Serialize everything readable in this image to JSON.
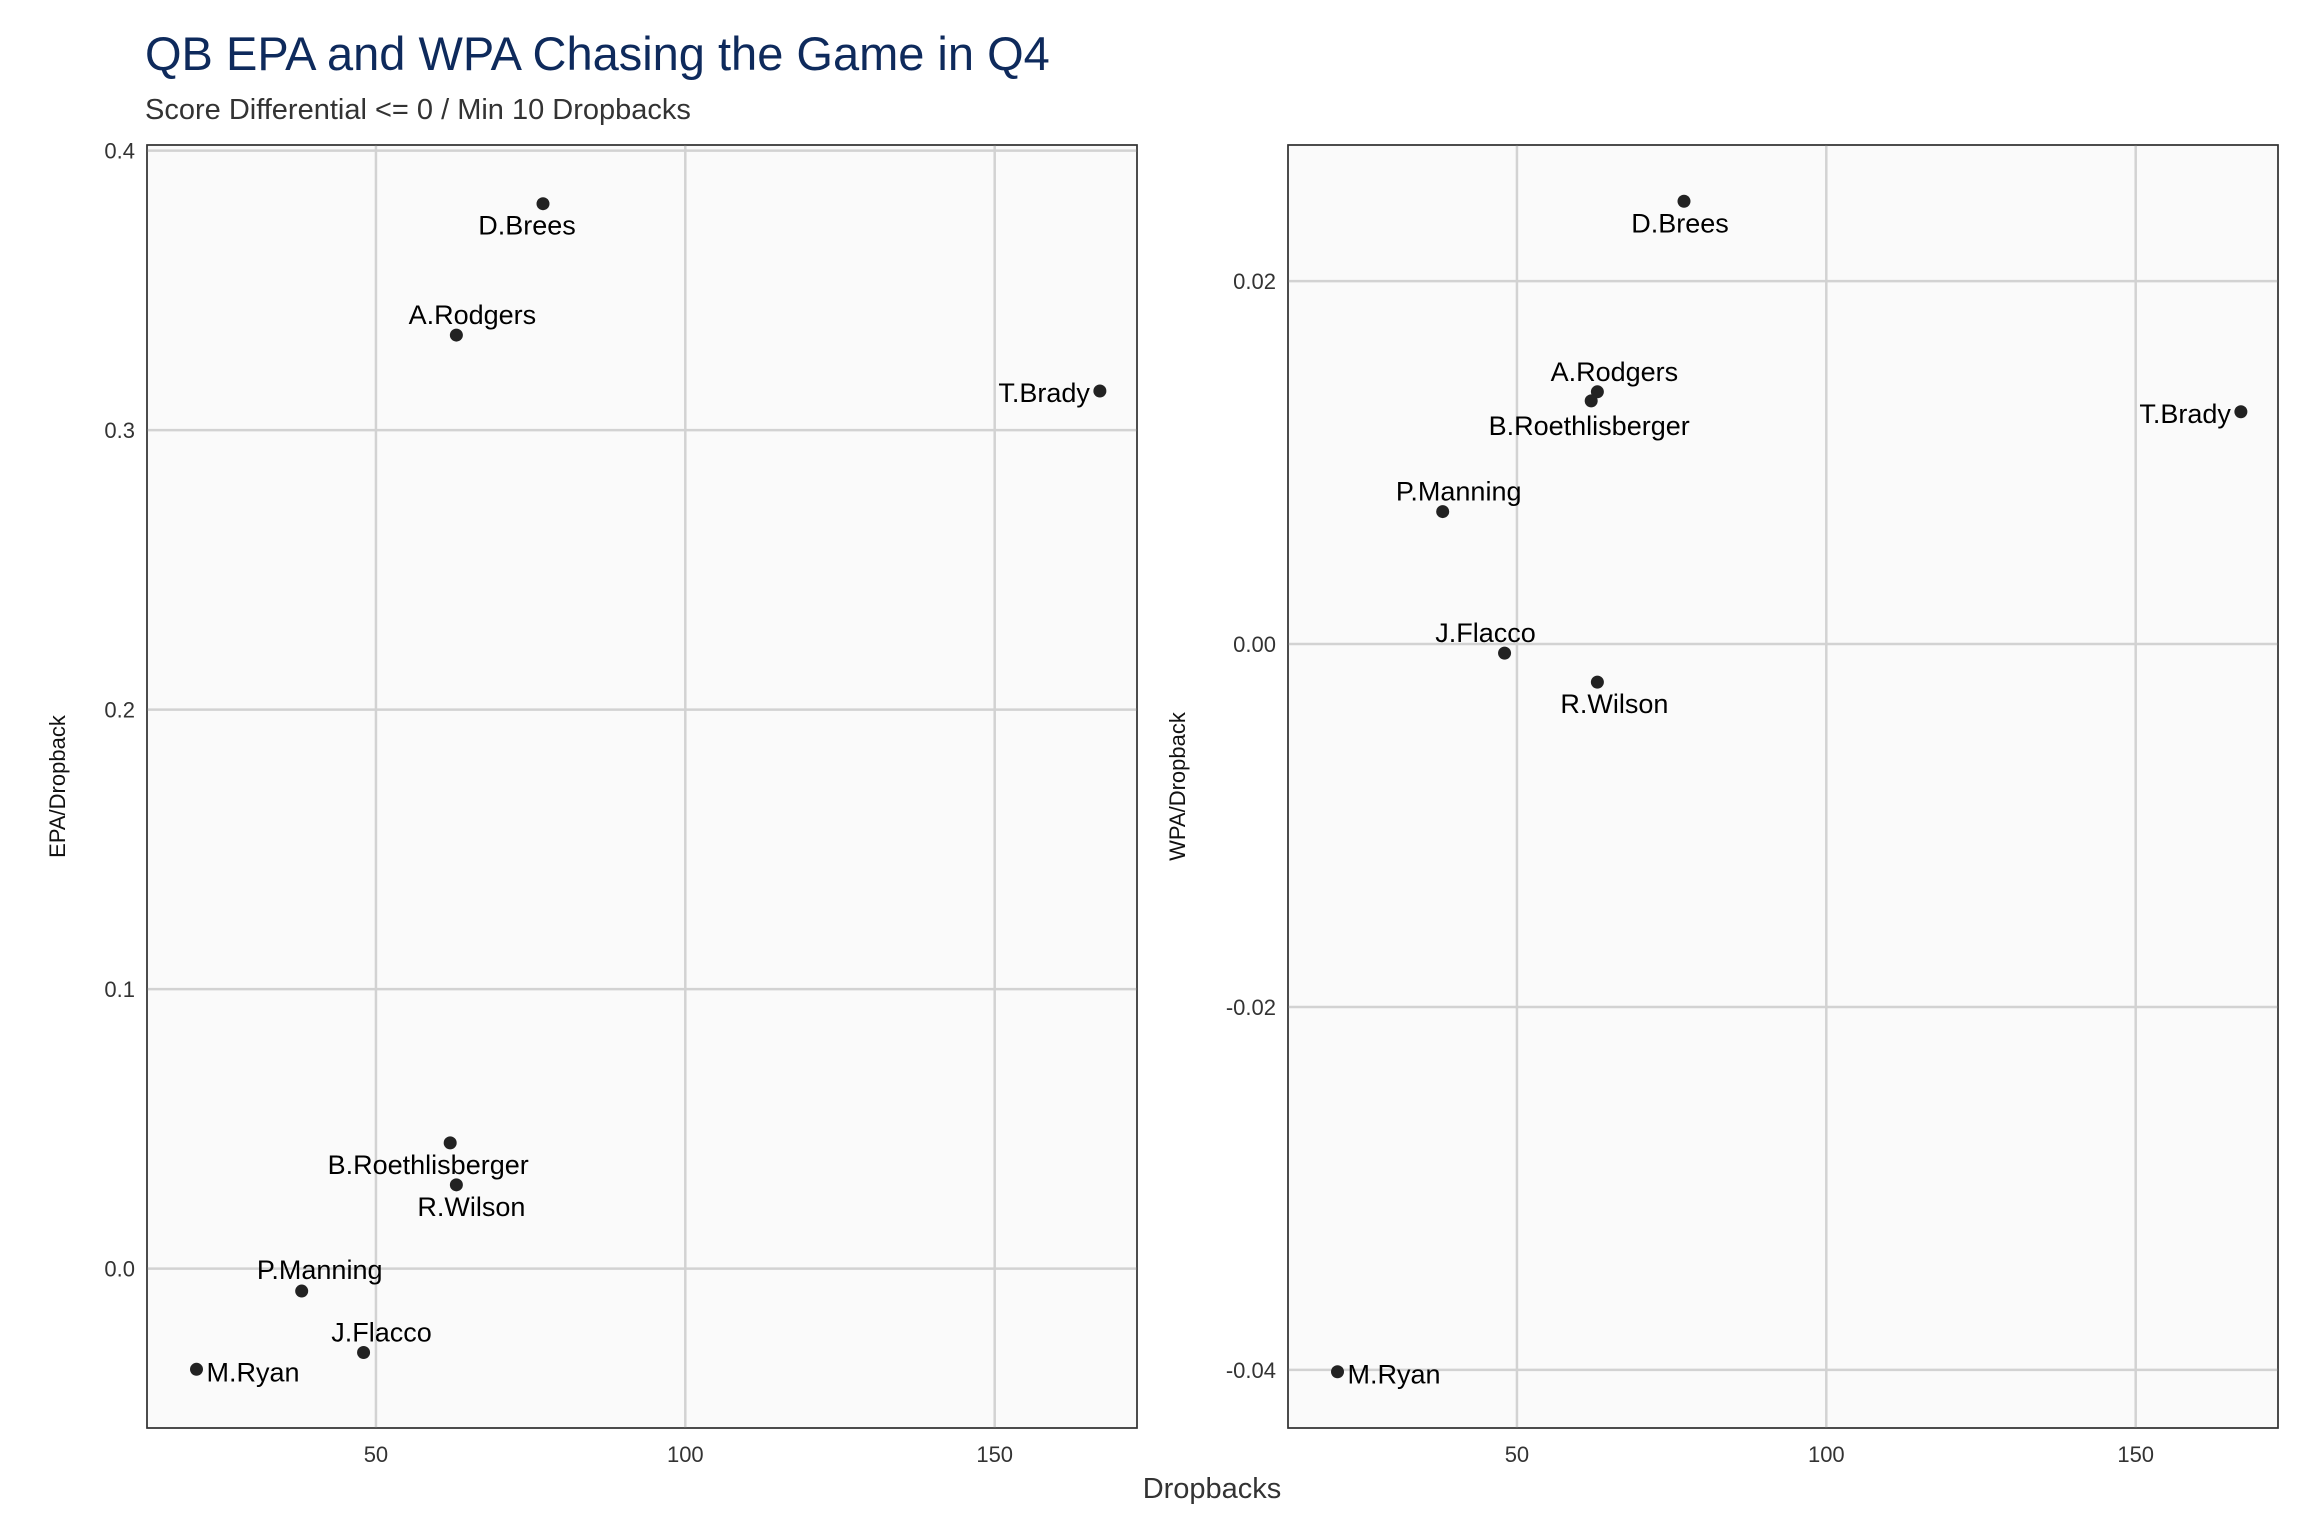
{
  "title": "QB EPA and WPA Chasing the Game in Q4",
  "subtitle": "Score Differential <= 0 / Min 10 Dropbacks",
  "shared_xlabel": "Dropbacks",
  "chart_data": [
    {
      "type": "scatter",
      "xlabel": "Dropbacks",
      "ylabel": "EPA/Dropback",
      "xlim": [
        13,
        173
      ],
      "ylim": [
        -0.057,
        0.402
      ],
      "xticks": [
        50,
        100,
        150
      ],
      "yticks": [
        0.0,
        0.1,
        0.2,
        0.3,
        0.4
      ],
      "ytick_labels": [
        "0.0",
        "0.1",
        "0.2",
        "0.3",
        "0.4"
      ],
      "grid": true,
      "points": [
        {
          "label": "D.Brees",
          "x": 77,
          "y": 0.381
        },
        {
          "label": "A.Rodgers",
          "x": 63,
          "y": 0.334
        },
        {
          "label": "T.Brady",
          "x": 167,
          "y": 0.314
        },
        {
          "label": "B.Roethlisberger",
          "x": 62,
          "y": 0.045
        },
        {
          "label": "R.Wilson",
          "x": 63,
          "y": 0.03
        },
        {
          "label": "P.Manning",
          "x": 38,
          "y": -0.008
        },
        {
          "label": "J.Flacco",
          "x": 48,
          "y": -0.03
        },
        {
          "label": "M.Ryan",
          "x": 21,
          "y": -0.036
        }
      ]
    },
    {
      "type": "scatter",
      "xlabel": "Dropbacks",
      "ylabel": "WPA/Dropback",
      "xlim": [
        13,
        173
      ],
      "ylim": [
        -0.0432,
        0.0275
      ],
      "xticks": [
        50,
        100,
        150
      ],
      "yticks": [
        -0.04,
        -0.02,
        0.0,
        0.02
      ],
      "ytick_labels": [
        "-0.04",
        "-0.02",
        "0.00",
        "0.02"
      ],
      "grid": true,
      "points": [
        {
          "label": "D.Brees",
          "x": 77,
          "y": 0.0244
        },
        {
          "label": "A.Rodgers",
          "x": 63,
          "y": 0.0139
        },
        {
          "label": "T.Brady",
          "x": 167,
          "y": 0.0128
        },
        {
          "label": "B.Roethlisberger",
          "x": 62,
          "y": 0.0134
        },
        {
          "label": "P.Manning",
          "x": 38,
          "y": 0.0073
        },
        {
          "label": "J.Flacco",
          "x": 48,
          "y": -0.0005
        },
        {
          "label": "R.Wilson",
          "x": 63,
          "y": -0.0021
        },
        {
          "label": "M.Ryan",
          "x": 21,
          "y": -0.0401
        }
      ]
    }
  ]
}
